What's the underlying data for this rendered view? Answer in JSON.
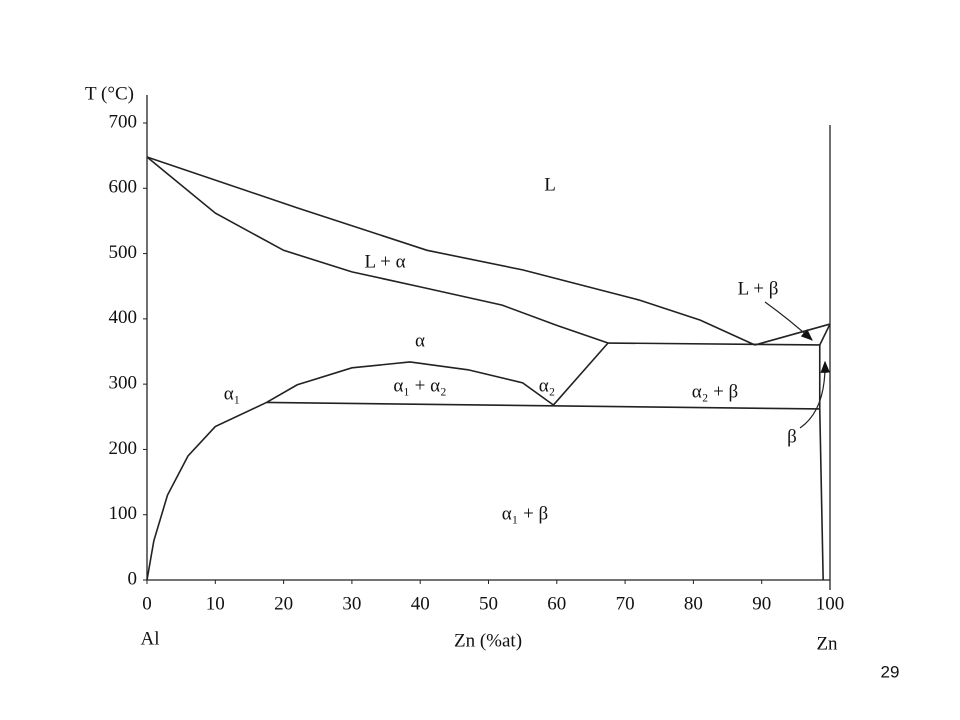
{
  "page_number": "29",
  "chart_data": {
    "type": "line",
    "ylabel": "T (°C)",
    "xlabel": "Zn (%at)",
    "left_label": "Al",
    "right_label": "Zn",
    "xlim": [
      0,
      100
    ],
    "ylim": [
      0,
      700
    ],
    "xticks": [
      0,
      10,
      20,
      30,
      40,
      50,
      60,
      70,
      80,
      90,
      100
    ],
    "yticks": [
      0,
      100,
      200,
      300,
      400,
      500,
      600,
      700
    ],
    "annotations": [
      "L",
      "L + α",
      "α",
      "α₁",
      "α₁ + α₂",
      "α₂",
      "L + β",
      "α₂ + β",
      "β",
      "α₁ + β"
    ],
    "series": [
      {
        "color": "#222",
        "x": [
          0,
          22,
          41,
          55,
          72,
          81,
          89
        ],
        "values": [
          648,
          570,
          505,
          475,
          429,
          398,
          360
        ]
      },
      {
        "color": "#222",
        "x": [
          0,
          10,
          20,
          30,
          40,
          52,
          60,
          67.5
        ],
        "values": [
          648,
          562,
          505,
          472,
          449,
          421,
          390,
          363
        ]
      },
      {
        "color": "#222",
        "x": [
          67.5,
          98.5
        ],
        "values": [
          363,
          360
        ]
      },
      {
        "color": "#222",
        "x": [
          17.5,
          98.5
        ],
        "values": [
          272,
          262
        ]
      },
      {
        "color": "#222",
        "x": [
          17.5,
          22,
          30,
          38.5,
          47,
          55,
          59.5
        ],
        "values": [
          272,
          299,
          325,
          334,
          322,
          302,
          268
        ]
      },
      {
        "color": "#222",
        "x": [
          59.5,
          67.5
        ],
        "values": [
          268,
          363
        ]
      },
      {
        "color": "#222",
        "x": [
          0,
          1,
          3,
          6,
          10,
          17.5
        ],
        "values": [
          0,
          60,
          130,
          190,
          235,
          272
        ]
      },
      {
        "color": "#222",
        "x": [
          89,
          100
        ],
        "values": [
          360,
          392
        ]
      },
      {
        "color": "#222",
        "x": [
          98.5,
          100
        ],
        "values": [
          360,
          392
        ]
      },
      {
        "color": "#222",
        "x": [
          98.5,
          98.5,
          99
        ],
        "values": [
          360,
          262,
          0
        ]
      }
    ]
  }
}
